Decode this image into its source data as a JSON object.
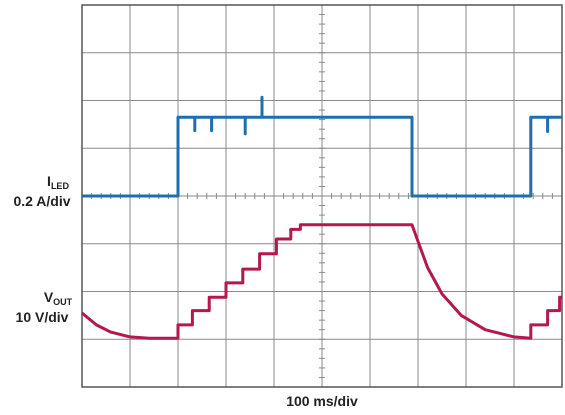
{
  "chart_data": {
    "type": "line",
    "x_label": "100 ms/div",
    "xlim": [
      0,
      10
    ],
    "ylim": [
      0,
      8
    ],
    "xticks": [
      0,
      1,
      2,
      3,
      4,
      5,
      6,
      7,
      8,
      9,
      10
    ],
    "yticks": [
      0,
      1,
      2,
      3,
      4,
      5,
      6,
      7,
      8
    ],
    "grid": true,
    "tick_labels": false,
    "series": [
      {
        "name": "I",
        "subscript": "LED",
        "scale": "0.2 A/div",
        "color": "#1f6fb0",
        "x": [
          0,
          2.0,
          2.0,
          2.35,
          2.35,
          2.35,
          2.7,
          2.7,
          2.7,
          3.4,
          3.4,
          3.4,
          3.75,
          3.75,
          3.75,
          6.875,
          6.875,
          9.35,
          9.35,
          9.7,
          9.7,
          9.7,
          10
        ],
        "values": [
          4,
          4,
          5.65,
          5.65,
          5.37,
          5.65,
          5.65,
          5.37,
          5.65,
          5.65,
          5.3,
          5.65,
          5.65,
          6.07,
          5.65,
          5.65,
          4,
          4,
          5.65,
          5.65,
          5.35,
          5.65,
          5.65
        ]
      },
      {
        "name": "V",
        "subscript": "OUT",
        "scale": "10 V/div",
        "color": "#b5174f",
        "x": [
          0,
          0.3,
          0.6,
          1.0,
          1.4,
          2.0,
          2.0,
          2.3,
          2.3,
          2.65,
          2.65,
          3.0,
          3.0,
          3.35,
          3.35,
          3.7,
          3.7,
          4.05,
          4.05,
          4.35,
          4.35,
          4.55,
          4.55,
          6.875,
          7.0,
          7.2,
          7.5,
          7.9,
          8.4,
          9.0,
          9.35,
          9.35,
          9.7,
          9.7,
          9.95,
          9.95,
          10
        ],
        "values": [
          1.55,
          1.3,
          1.15,
          1.05,
          1.02,
          1.02,
          1.3,
          1.3,
          1.6,
          1.6,
          1.88,
          1.88,
          2.18,
          2.18,
          2.47,
          2.47,
          2.79,
          2.79,
          3.1,
          3.1,
          3.3,
          3.3,
          3.4,
          3.4,
          3.05,
          2.5,
          1.95,
          1.5,
          1.2,
          1.05,
          1.02,
          1.3,
          1.3,
          1.6,
          1.6,
          1.88,
          1.88
        ]
      }
    ]
  }
}
